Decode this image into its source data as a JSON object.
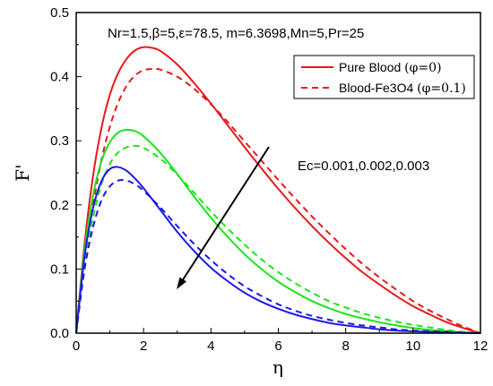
{
  "chart_data": {
    "type": "line",
    "title": "",
    "annotation_top": "Nr=1.5,β=5,ε=78.5, m=6.3698,Mn=5,Pr=25",
    "annotation_ec": "Ec=0.001,0.002,0.003",
    "xlabel": "η",
    "ylabel": "F'",
    "xlim": [
      0,
      12
    ],
    "ylim": [
      0,
      0.5
    ],
    "xticks": [
      "0",
      "2",
      "4",
      "6",
      "8",
      "10",
      "12"
    ],
    "yticks": [
      "0.0",
      "0.1",
      "0.2",
      "0.3",
      "0.4",
      "0.5"
    ],
    "grid": false,
    "legend_position": "top-right",
    "legend": [
      {
        "label": "Pure Blood",
        "param": "(φ=0)",
        "style": "solid",
        "color": "#e8191a"
      },
      {
        "label": "Blood-Fe3O4",
        "param": "(φ=0.1)",
        "style": "dashed",
        "color": "#e8191a"
      }
    ],
    "series": [
      {
        "group": "Ec=0.001",
        "phi": 0,
        "style": "solid",
        "color": "#e8191a",
        "x": [
          0,
          0.25,
          0.5,
          0.75,
          1,
          1.25,
          1.5,
          1.75,
          2,
          2.25,
          2.5,
          3,
          3.5,
          4,
          4.5,
          5,
          5.5,
          6,
          6.5,
          7,
          7.5,
          8,
          8.5,
          9,
          9.5,
          10,
          10.5,
          11,
          11.5,
          12
        ],
        "y": [
          0,
          0.14,
          0.245,
          0.32,
          0.372,
          0.406,
          0.428,
          0.441,
          0.446,
          0.445,
          0.44,
          0.419,
          0.39,
          0.358,
          0.324,
          0.29,
          0.257,
          0.225,
          0.195,
          0.167,
          0.141,
          0.117,
          0.095,
          0.076,
          0.058,
          0.042,
          0.029,
          0.017,
          0.008,
          0
        ]
      },
      {
        "group": "Ec=0.001",
        "phi": 0.1,
        "style": "dashed",
        "color": "#e8191a",
        "x": [
          0,
          0.25,
          0.5,
          0.75,
          1,
          1.25,
          1.5,
          1.75,
          2,
          2.25,
          2.5,
          3,
          3.5,
          4,
          4.5,
          5,
          5.5,
          6,
          6.5,
          7,
          7.5,
          8,
          8.5,
          9,
          9.5,
          10,
          10.5,
          11,
          11.5,
          12
        ],
        "y": [
          0,
          0.11,
          0.2,
          0.27,
          0.322,
          0.36,
          0.386,
          0.402,
          0.41,
          0.412,
          0.411,
          0.4,
          0.381,
          0.357,
          0.329,
          0.299,
          0.269,
          0.239,
          0.21,
          0.182,
          0.156,
          0.131,
          0.108,
          0.087,
          0.068,
          0.05,
          0.035,
          0.022,
          0.01,
          0
        ]
      },
      {
        "group": "Ec=0.002",
        "phi": 0,
        "style": "solid",
        "color": "#19e619",
        "x": [
          0,
          0.25,
          0.5,
          0.75,
          1,
          1.25,
          1.5,
          1.75,
          2,
          2.5,
          3,
          3.5,
          4,
          4.5,
          5,
          5.5,
          6,
          6.5,
          7,
          7.5,
          8,
          8.5,
          9,
          9.5,
          10,
          10.5,
          11,
          11.5,
          12
        ],
        "y": [
          0,
          0.13,
          0.215,
          0.268,
          0.298,
          0.313,
          0.317,
          0.315,
          0.307,
          0.281,
          0.248,
          0.213,
          0.18,
          0.15,
          0.123,
          0.1,
          0.08,
          0.064,
          0.05,
          0.039,
          0.03,
          0.023,
          0.017,
          0.012,
          0.008,
          0.005,
          0.003,
          0.001,
          0
        ]
      },
      {
        "group": "Ec=0.002",
        "phi": 0.1,
        "style": "dashed",
        "color": "#19e619",
        "x": [
          0,
          0.25,
          0.5,
          0.75,
          1,
          1.25,
          1.5,
          1.75,
          2,
          2.5,
          3,
          3.5,
          4,
          4.5,
          5,
          5.5,
          6,
          6.5,
          7,
          7.5,
          8,
          8.5,
          9,
          9.5,
          10,
          10.5,
          11,
          11.5,
          12
        ],
        "y": [
          0,
          0.105,
          0.18,
          0.232,
          0.264,
          0.282,
          0.29,
          0.292,
          0.289,
          0.272,
          0.247,
          0.219,
          0.19,
          0.163,
          0.138,
          0.115,
          0.095,
          0.078,
          0.063,
          0.05,
          0.04,
          0.031,
          0.024,
          0.018,
          0.013,
          0.009,
          0.005,
          0.002,
          0
        ]
      },
      {
        "group": "Ec=0.003",
        "phi": 0,
        "style": "solid",
        "color": "#1a1ae6",
        "x": [
          0,
          0.25,
          0.5,
          0.75,
          1,
          1.25,
          1.5,
          1.75,
          2,
          2.5,
          3,
          3.5,
          4,
          4.5,
          5,
          5.5,
          6,
          6.5,
          7,
          7.5,
          8,
          8.5,
          9,
          9.5,
          10,
          10.5,
          11,
          11.5,
          12
        ],
        "y": [
          0,
          0.12,
          0.195,
          0.237,
          0.256,
          0.259,
          0.253,
          0.241,
          0.226,
          0.192,
          0.158,
          0.128,
          0.102,
          0.081,
          0.063,
          0.049,
          0.038,
          0.029,
          0.022,
          0.016,
          0.012,
          0.009,
          0.006,
          0.004,
          0.003,
          0.002,
          0.001,
          0.0005,
          0
        ]
      },
      {
        "group": "Ec=0.003",
        "phi": 0.1,
        "style": "dashed",
        "color": "#1a1ae6",
        "x": [
          0,
          0.25,
          0.5,
          0.75,
          1,
          1.25,
          1.5,
          1.75,
          2,
          2.5,
          3,
          3.5,
          4,
          4.5,
          5,
          5.5,
          6,
          6.5,
          7,
          7.5,
          8,
          8.5,
          9,
          9.5,
          10,
          10.5,
          11,
          11.5,
          12
        ],
        "y": [
          0,
          0.1,
          0.165,
          0.207,
          0.229,
          0.238,
          0.238,
          0.232,
          0.222,
          0.196,
          0.167,
          0.139,
          0.114,
          0.092,
          0.073,
          0.058,
          0.045,
          0.035,
          0.027,
          0.021,
          0.016,
          0.012,
          0.009,
          0.006,
          0.004,
          0.003,
          0.002,
          0.001,
          0
        ]
      }
    ]
  }
}
